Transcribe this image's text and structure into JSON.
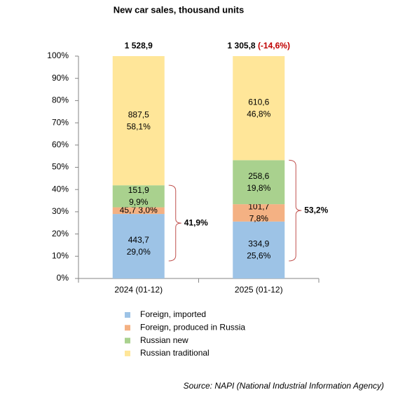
{
  "chart_data": {
    "type": "stacked_percent_bar",
    "title": "New car sales, thousand units",
    "categories": [
      "2024 (01-12)",
      "2025 (01-12)"
    ],
    "total_labels": [
      "1 528,9",
      "1 305,8"
    ],
    "change_label": "(-14,6%)",
    "bracket_labels": [
      "41,9%",
      "53,2%"
    ],
    "series": [
      {
        "name": "Foreign, imported",
        "color": "#9dc3e6",
        "values": [
          29.0,
          25.6
        ],
        "value_labels": [
          "29,0%",
          "25,6%"
        ],
        "amount_labels": [
          "443,7",
          "334,9"
        ]
      },
      {
        "name": "Foreign, produced in Russia",
        "color": "#f4b183",
        "values": [
          3.0,
          7.8
        ],
        "value_labels": [
          "3,0%",
          "7,8%"
        ],
        "amount_labels": [
          "45,7",
          "101,7"
        ]
      },
      {
        "name": "Russian new",
        "color": "#a9d18e",
        "values": [
          9.9,
          19.8
        ],
        "value_labels": [
          "9,9%",
          "19,8%"
        ],
        "amount_labels": [
          "151,9",
          "258,6"
        ]
      },
      {
        "name": "Russian traditional",
        "color": "#ffe699",
        "values": [
          58.1,
          46.8
        ],
        "value_labels": [
          "58,1%",
          "46,8%"
        ],
        "amount_labels": [
          "887,5",
          "610,6"
        ]
      }
    ],
    "ylim": [
      0,
      100
    ],
    "yticks": [
      {
        "value": 0,
        "label": "0%"
      },
      {
        "value": 10,
        "label": "10%"
      },
      {
        "value": 20,
        "label": "20%"
      },
      {
        "value": 30,
        "label": "30%"
      },
      {
        "value": 40,
        "label": "40%"
      },
      {
        "value": 50,
        "label": "50%"
      },
      {
        "value": 60,
        "label": "60%"
      },
      {
        "value": 70,
        "label": "70%"
      },
      {
        "value": 80,
        "label": "80%"
      },
      {
        "value": 90,
        "label": "90%"
      },
      {
        "value": 100,
        "label": "100%"
      }
    ],
    "grid": false,
    "source": "Source: NAPI (National Industrial Information Agency)"
  }
}
